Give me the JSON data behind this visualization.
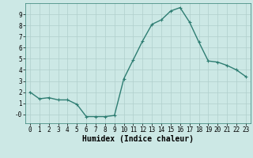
{
  "x": [
    0,
    1,
    2,
    3,
    4,
    5,
    6,
    7,
    8,
    9,
    10,
    11,
    12,
    13,
    14,
    15,
    16,
    17,
    18,
    19,
    20,
    21,
    22,
    23
  ],
  "y": [
    2.0,
    1.4,
    1.5,
    1.3,
    1.3,
    0.9,
    -0.2,
    -0.2,
    -0.2,
    -0.1,
    3.2,
    4.9,
    6.6,
    8.1,
    8.5,
    9.3,
    9.6,
    8.3,
    6.5,
    4.8,
    4.7,
    4.4,
    4.0,
    3.4
  ],
  "line_color": "#2e7d72",
  "marker": "+",
  "marker_size": 3,
  "bg_color": "#cce8e5",
  "grid_color": "#b0cfcc",
  "xlabel": "Humidex (Indice chaleur)",
  "xlim": [
    -0.5,
    23.5
  ],
  "ylim": [
    -0.8,
    10.0
  ],
  "yticks": [
    0,
    1,
    2,
    3,
    4,
    5,
    6,
    7,
    8,
    9
  ],
  "ytick_labels": [
    "-0",
    "1",
    "2",
    "3",
    "4",
    "5",
    "6",
    "7",
    "8",
    "9"
  ],
  "xticks": [
    0,
    1,
    2,
    3,
    4,
    5,
    6,
    7,
    8,
    9,
    10,
    11,
    12,
    13,
    14,
    15,
    16,
    17,
    18,
    19,
    20,
    21,
    22,
    23
  ],
  "tick_fontsize": 5.5,
  "xlabel_fontsize": 7,
  "line_width": 1.0,
  "marker_edge_width": 0.8
}
